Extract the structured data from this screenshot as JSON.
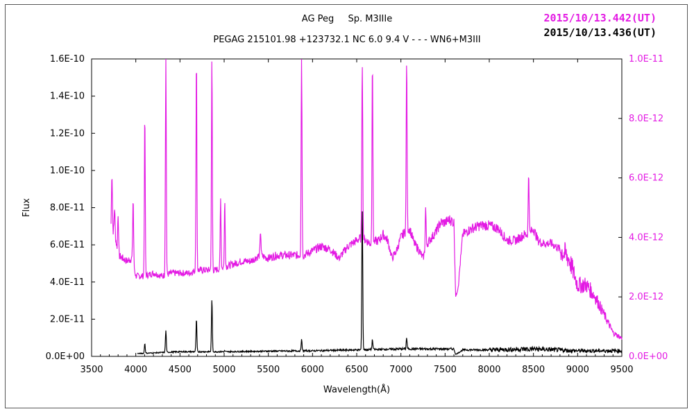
{
  "header": {
    "object": "AG Peg",
    "spectral_type": "Sp. M3IIIe",
    "catalog_line": "PEGAG 215101.98 +123732.1 NC 6.0 9.4 V - - - WN6+M3III",
    "date_magenta": "2015/10/13.442(UT)",
    "date_black": "2015/10/13.436(UT)"
  },
  "colors": {
    "magenta": "#e31ae3",
    "black": "#000000",
    "frame": "#555555"
  },
  "chart_data": {
    "type": "line",
    "xlabel": "Wavelength(Å)",
    "ylabel": "Flux",
    "xlim": [
      3500,
      9500
    ],
    "ylim_left": [
      0,
      1.6e-10
    ],
    "ylim_right": [
      0,
      1e-11
    ],
    "x_ticks": [
      "3500",
      "4000",
      "4500",
      "5000",
      "5500",
      "6000",
      "6500",
      "7000",
      "7500",
      "8000",
      "8500",
      "9000",
      "9500"
    ],
    "y_ticks_left": [
      "0.0E+00",
      "2.0E-11",
      "4.0E-11",
      "6.0E-11",
      "8.0E-11",
      "1.0E-10",
      "1.2E-10",
      "1.4E-10",
      "1.6E-10"
    ],
    "y_ticks_right": [
      "0.0E+00",
      "2.0E-12",
      "4.0E-12",
      "6.0E-12",
      "8.0E-12",
      "1.0E-11"
    ],
    "series": [
      {
        "color": "#e31ae3",
        "axis": "right",
        "continuum": [
          [
            3720,
            4.2e-12
          ],
          [
            3760,
            4.2e-12
          ],
          [
            3800,
            3.4e-12
          ],
          [
            3900,
            3.2e-12
          ],
          [
            3960,
            3.3e-12
          ],
          [
            4000,
            2.7e-12
          ],
          [
            4100,
            2.7e-12
          ],
          [
            4200,
            2.8e-12
          ],
          [
            4300,
            2.7e-12
          ],
          [
            4400,
            2.8e-12
          ],
          [
            4500,
            2.8e-12
          ],
          [
            4600,
            2.8e-12
          ],
          [
            4700,
            2.9e-12
          ],
          [
            4800,
            2.9e-12
          ],
          [
            4900,
            2.9e-12
          ],
          [
            5000,
            3e-12
          ],
          [
            5100,
            3.1e-12
          ],
          [
            5200,
            3.2e-12
          ],
          [
            5300,
            3.2e-12
          ],
          [
            5400,
            3.4e-12
          ],
          [
            5500,
            3.3e-12
          ],
          [
            5600,
            3.4e-12
          ],
          [
            5700,
            3.4e-12
          ],
          [
            5800,
            3.4e-12
          ],
          [
            5900,
            3.4e-12
          ],
          [
            6000,
            3.55e-12
          ],
          [
            6100,
            3.7e-12
          ],
          [
            6200,
            3.6e-12
          ],
          [
            6300,
            3.3e-12
          ],
          [
            6400,
            3.7e-12
          ],
          [
            6500,
            3.9e-12
          ],
          [
            6560,
            4e-12
          ],
          [
            6650,
            3.8e-12
          ],
          [
            6750,
            3.9e-12
          ],
          [
            6800,
            4.1e-12
          ],
          [
            6850,
            3.9e-12
          ],
          [
            6900,
            3.3e-12
          ],
          [
            6950,
            3.55e-12
          ],
          [
            7000,
            4e-12
          ],
          [
            7050,
            4.2e-12
          ],
          [
            7100,
            4.3e-12
          ],
          [
            7150,
            3.8e-12
          ],
          [
            7200,
            3.6e-12
          ],
          [
            7250,
            3.3e-12
          ],
          [
            7300,
            3.8e-12
          ],
          [
            7350,
            4e-12
          ],
          [
            7400,
            4.2e-12
          ],
          [
            7450,
            4.5e-12
          ],
          [
            7500,
            4.5e-12
          ],
          [
            7550,
            4.6e-12
          ],
          [
            7600,
            4.5e-12
          ],
          [
            7620,
            2e-12
          ],
          [
            7650,
            2.4e-12
          ],
          [
            7700,
            4.1e-12
          ],
          [
            7800,
            4.3e-12
          ],
          [
            7900,
            4.4e-12
          ],
          [
            8000,
            4.4e-12
          ],
          [
            8100,
            4.3e-12
          ],
          [
            8200,
            3.9e-12
          ],
          [
            8300,
            3.9e-12
          ],
          [
            8400,
            4.1e-12
          ],
          [
            8450,
            4.1e-12
          ],
          [
            8500,
            4.3e-12
          ],
          [
            8550,
            3.9e-12
          ],
          [
            8600,
            3.8e-12
          ],
          [
            8700,
            3.8e-12
          ],
          [
            8800,
            3.6e-12
          ],
          [
            8900,
            3.3e-12
          ],
          [
            9000,
            2.4e-12
          ],
          [
            9100,
            2.4e-12
          ],
          [
            9200,
            2e-12
          ],
          [
            9300,
            1.4e-12
          ],
          [
            9400,
            8e-13
          ],
          [
            9500,
            6e-13
          ]
        ],
        "lines": [
          [
            3730,
            6.2e-12
          ],
          [
            3760,
            5e-12
          ],
          [
            3800,
            4.8e-12
          ],
          [
            3970,
            5.3e-12
          ],
          [
            4102,
            8.1e-12
          ],
          [
            4340,
            1e-11
          ],
          [
            4686,
            1e-11
          ],
          [
            4861,
            1e-11
          ],
          [
            4960,
            5.3e-12
          ],
          [
            5007,
            5.2e-12
          ],
          [
            5412,
            4.2e-12
          ],
          [
            5876,
            1e-11
          ],
          [
            6563,
            1e-11
          ],
          [
            6678,
            1e-11
          ],
          [
            7065,
            1e-11
          ],
          [
            7280,
            5e-12
          ],
          [
            8446,
            6.2e-12
          ]
        ]
      },
      {
        "color": "#000000",
        "axis": "left",
        "continuum": [
          [
            4020,
            1.5e-12
          ],
          [
            4500,
            2.5e-12
          ],
          [
            5000,
            2.5e-12
          ],
          [
            5500,
            2.8e-12
          ],
          [
            6000,
            3e-12
          ],
          [
            6500,
            3.5e-12
          ],
          [
            7000,
            4e-12
          ],
          [
            7500,
            4e-12
          ],
          [
            7600,
            4e-12
          ],
          [
            7620,
            1e-12
          ],
          [
            7700,
            3.5e-12
          ],
          [
            8000,
            3.5e-12
          ],
          [
            8500,
            4e-12
          ],
          [
            9000,
            3e-12
          ],
          [
            9500,
            3e-12
          ]
        ],
        "lines": [
          [
            4102,
            7e-12
          ],
          [
            4340,
            1.4e-11
          ],
          [
            4686,
            2e-11
          ],
          [
            4861,
            3.1e-11
          ],
          [
            5007,
            3e-12
          ],
          [
            5876,
            9e-12
          ],
          [
            6563,
            8e-11
          ],
          [
            6678,
            9e-12
          ],
          [
            7065,
            1e-11
          ],
          [
            8446,
            3e-12
          ]
        ]
      }
    ]
  }
}
